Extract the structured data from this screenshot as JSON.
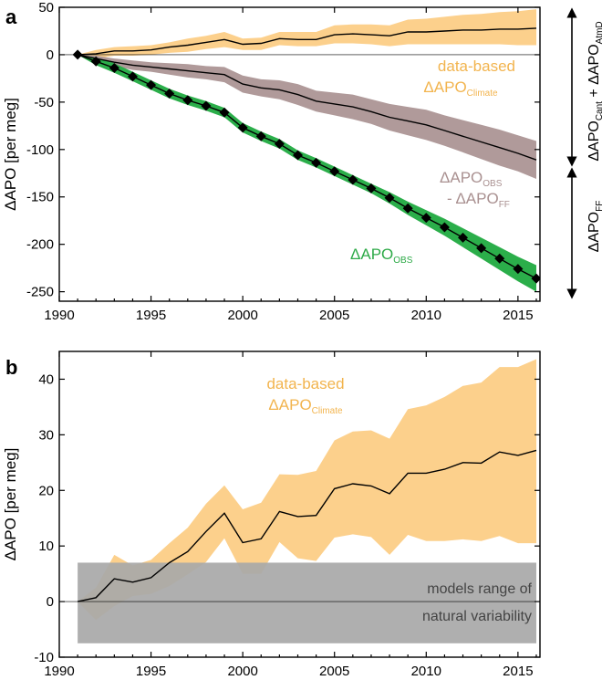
{
  "colors": {
    "climate_band": "#fcd08c",
    "climate_text": "#f2b44e",
    "obs_ff_band": "#b09a9a",
    "obs_ff_text": "#a99090",
    "obs_band": "#2bae4a",
    "obs_text": "#2eaa48",
    "natural_band": "#a8a8a8",
    "line": "#000000"
  },
  "chart_data": [
    {
      "type": "line",
      "panel_label": "a",
      "ylabel": "ΔAPO [per meg]",
      "xlim": [
        1990,
        2016.2
      ],
      "ylim": [
        -260,
        50
      ],
      "xticks": [
        1990,
        1995,
        2000,
        2005,
        2010,
        2015
      ],
      "yticks": [
        50,
        0,
        -50,
        -100,
        -150,
        -200,
        -250
      ],
      "x": [
        1991,
        1992,
        1993,
        1994,
        1995,
        1996,
        1997,
        1998,
        1999,
        2000,
        2001,
        2002,
        2003,
        2004,
        2005,
        2006,
        2007,
        2008,
        2009,
        2010,
        2011,
        2012,
        2013,
        2014,
        2015,
        2016
      ],
      "series": [
        {
          "name": "data-based ΔAPO_Climate",
          "label_main": "ΔAPO",
          "label_sub": "Climate",
          "label_prefix": "data-based",
          "values": [
            0,
            1,
            4,
            4,
            5,
            8,
            10,
            13,
            16,
            11,
            12,
            17,
            16,
            16,
            21,
            22,
            21,
            20,
            24,
            24,
            25,
            26,
            26,
            27,
            27,
            28
          ],
          "lower": [
            0,
            -4,
            -1,
            -1,
            0,
            2,
            3,
            6,
            8,
            5,
            5,
            10,
            9,
            9,
            12,
            12,
            11,
            9,
            11,
            11,
            11,
            11,
            11,
            11,
            10,
            10
          ],
          "upper": [
            0,
            5,
            8,
            9,
            10,
            13,
            17,
            20,
            24,
            17,
            18,
            24,
            24,
            24,
            31,
            32,
            32,
            31,
            37,
            38,
            40,
            42,
            43,
            45,
            46,
            48
          ]
        },
        {
          "name": "ΔAPO_OBS - ΔAPO_FF",
          "label_main": "ΔAPO",
          "label_sub": "OBS",
          "label_line2_main": "- ΔAPO",
          "label_line2_sub": "FF",
          "values": [
            0,
            -4,
            -8,
            -11,
            -13,
            -15,
            -17,
            -19,
            -21,
            -31,
            -35,
            -37,
            -42,
            -49,
            -52,
            -55,
            -60,
            -66,
            -70,
            -74,
            -80,
            -86,
            -92,
            -98,
            -104,
            -111
          ],
          "lower": [
            0,
            -7,
            -12,
            -16,
            -18,
            -21,
            -24,
            -26,
            -29,
            -40,
            -44,
            -47,
            -53,
            -60,
            -64,
            -68,
            -73,
            -80,
            -85,
            -90,
            -96,
            -103,
            -110,
            -117,
            -123,
            -131
          ],
          "upper": [
            0,
            -1,
            -4,
            -6,
            -8,
            -9,
            -10,
            -12,
            -13,
            -22,
            -26,
            -27,
            -31,
            -38,
            -40,
            -42,
            -47,
            -52,
            -55,
            -58,
            -64,
            -69,
            -74,
            -79,
            -85,
            -91
          ]
        },
        {
          "name": "ΔAPO_OBS",
          "label_main": "ΔAPO",
          "label_sub": "OBS",
          "values": [
            0,
            -7,
            -14,
            -23,
            -32,
            -41,
            -48,
            -54,
            -61,
            -77,
            -86,
            -94,
            -106,
            -114,
            -123,
            -132,
            -141,
            -151,
            -162,
            -172,
            -182,
            -193,
            -204,
            -215,
            -226,
            -236
          ],
          "lower": [
            0,
            -11,
            -19,
            -28,
            -37,
            -46,
            -53,
            -59,
            -66,
            -82,
            -91,
            -99,
            -111,
            -119,
            -128,
            -137,
            -146,
            -157,
            -169,
            -180,
            -191,
            -203,
            -215,
            -227,
            -239,
            -250
          ],
          "upper": [
            0,
            -3,
            -9,
            -18,
            -27,
            -36,
            -43,
            -49,
            -56,
            -72,
            -81,
            -89,
            -101,
            -109,
            -118,
            -127,
            -136,
            -145,
            -155,
            -164,
            -173,
            -183,
            -193,
            -203,
            -213,
            -222
          ],
          "markers": true
        }
      ],
      "side_annotations": {
        "top_main1": "ΔAPO",
        "top_sub1": "Cant",
        "top_plus": " + ΔAPO",
        "top_sub2": "AtmD",
        "bottom_main": "ΔAPO",
        "bottom_sub": "FF"
      }
    },
    {
      "type": "line",
      "panel_label": "b",
      "ylabel": "ΔAPO [per meg]",
      "xlim": [
        1990,
        2016.2
      ],
      "ylim": [
        -10,
        45
      ],
      "xticks": [
        1990,
        1995,
        2000,
        2005,
        2010,
        2015
      ],
      "yticks": [
        40,
        30,
        20,
        10,
        0,
        -10
      ],
      "x": [
        1991,
        1992,
        1993,
        1994,
        1995,
        1996,
        1997,
        1998,
        1999,
        2000,
        2001,
        2002,
        2003,
        2004,
        2005,
        2006,
        2007,
        2008,
        2009,
        2010,
        2011,
        2012,
        2013,
        2014,
        2015,
        2016
      ],
      "series": [
        {
          "name": "data-based ΔAPO_Climate",
          "label_prefix": "data-based",
          "label_main": "ΔAPO",
          "label_sub": "Climate",
          "values": [
            0,
            0.7,
            4.1,
            3.5,
            4.3,
            7,
            9,
            12.6,
            15.9,
            10.6,
            11.3,
            16.2,
            15.3,
            15.5,
            20.3,
            21.2,
            20.8,
            19.4,
            23.1,
            23.1,
            23.8,
            25,
            24.9,
            26.9,
            26.3,
            27.2
          ],
          "lower": [
            0,
            -3.3,
            -0.8,
            1,
            1.4,
            2.8,
            4.9,
            7.1,
            11.4,
            5,
            5,
            10.7,
            7.8,
            7.3,
            11.5,
            12.1,
            11.6,
            8.4,
            12,
            10.9,
            10.9,
            11.2,
            10.9,
            11.8,
            10.5,
            10.5
          ],
          "upper": [
            0,
            2.5,
            8.4,
            6.5,
            7.5,
            10.5,
            13.3,
            17.6,
            20.9,
            16.6,
            17.8,
            22.9,
            22.8,
            23.5,
            29,
            30.6,
            30.8,
            29.3,
            34.6,
            35.3,
            36.8,
            38.8,
            39.4,
            42.2,
            42.2,
            43.6
          ]
        }
      ],
      "natural_variability": {
        "range": [
          -7.5,
          7
        ],
        "label_line1": "models range of",
        "label_line2": "natural variability"
      }
    }
  ]
}
